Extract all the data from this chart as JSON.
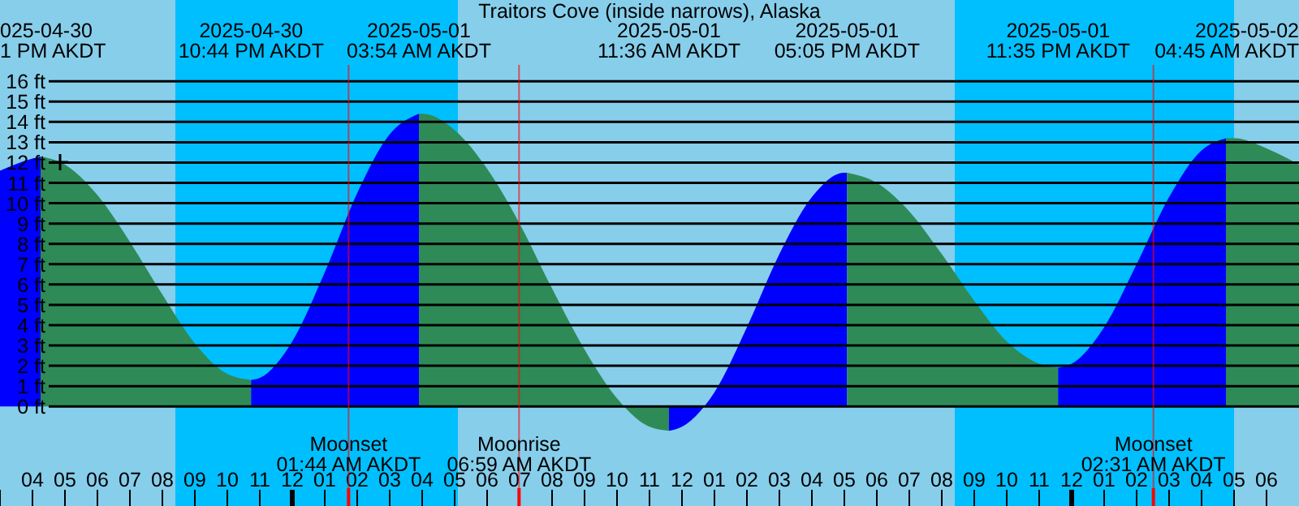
{
  "chart_data": {
    "type": "area",
    "title": "Traitors Cove (inside narrows), Alaska",
    "series": [
      {
        "color": "#0000ff",
        "x": [
          "2025-04-30T15:00",
          "2025-04-30T16:00",
          "2025-04-30T16:15"
        ],
        "values": [
          11.6,
          12.2,
          12.3
        ]
      },
      {
        "color": "#2e8b57",
        "x": [
          "2025-04-30T16:15",
          "2025-04-30T17:00",
          "2025-04-30T18:00",
          "2025-04-30T19:00",
          "2025-04-30T20:00",
          "2025-04-30T21:00",
          "2025-04-30T22:00",
          "2025-04-30T22:44"
        ],
        "values": [
          12.3,
          11.9,
          10.4,
          8.1,
          5.5,
          3.1,
          1.6,
          1.3
        ]
      },
      {
        "color": "#0000ff",
        "x": [
          "2025-04-30T22:44",
          "2025-04-30T23:00",
          "2025-05-01T00:00",
          "2025-05-01T01:00",
          "2025-05-01T02:00",
          "2025-05-01T03:00",
          "2025-05-01T03:54"
        ],
        "values": [
          1.3,
          1.4,
          3.2,
          6.6,
          10.5,
          13.4,
          14.4
        ]
      },
      {
        "color": "#2e8b57",
        "x": [
          "2025-05-01T03:54",
          "2025-05-01T04:00",
          "2025-05-01T05:00",
          "2025-05-01T06:00",
          "2025-05-01T07:00",
          "2025-05-01T08:00",
          "2025-05-01T09:00",
          "2025-05-01T10:00",
          "2025-05-01T11:00",
          "2025-05-01T11:36"
        ],
        "values": [
          14.4,
          14.4,
          13.6,
          11.7,
          9.0,
          5.8,
          2.8,
          0.4,
          -1.0,
          -1.2
        ]
      },
      {
        "color": "#0000ff",
        "x": [
          "2025-05-01T11:36",
          "2025-05-01T12:00",
          "2025-05-01T13:00",
          "2025-05-01T14:00",
          "2025-05-01T15:00",
          "2025-05-01T16:00",
          "2025-05-01T17:00",
          "2025-05-01T17:05"
        ],
        "values": [
          -1.2,
          -1.0,
          0.7,
          3.9,
          7.5,
          10.3,
          11.5,
          11.5
        ]
      },
      {
        "color": "#2e8b57",
        "x": [
          "2025-05-01T17:05",
          "2025-05-01T18:00",
          "2025-05-01T19:00",
          "2025-05-01T20:00",
          "2025-05-01T21:00",
          "2025-05-01T22:00",
          "2025-05-01T23:00",
          "2025-05-01T23:35"
        ],
        "values": [
          11.5,
          11.0,
          9.6,
          7.5,
          5.2,
          3.2,
          2.1,
          1.9
        ]
      },
      {
        "color": "#0000ff",
        "x": [
          "2025-05-01T23:35",
          "2025-05-02T00:00",
          "2025-05-02T01:00",
          "2025-05-02T02:00",
          "2025-05-02T03:00",
          "2025-05-02T04:00",
          "2025-05-02T04:45"
        ],
        "values": [
          1.9,
          2.1,
          3.9,
          7.0,
          10.3,
          12.6,
          13.2
        ]
      },
      {
        "color": "#2e8b57",
        "x": [
          "2025-05-02T04:45",
          "2025-05-02T05:00",
          "2025-05-02T06:00",
          "2025-05-02T07:00"
        ],
        "values": [
          13.2,
          13.2,
          12.7,
          11.9
        ]
      }
    ],
    "xlim": [
      "2025-04-30T15:00",
      "2025-05-02T07:00"
    ],
    "xticks": [
      {
        "value": "2025-04-30T15:00",
        "label": null
      },
      {
        "value": "2025-04-30T16:00",
        "label": "04"
      },
      {
        "value": "2025-04-30T17:00",
        "label": "05"
      },
      {
        "value": "2025-04-30T18:00",
        "label": "06"
      },
      {
        "value": "2025-04-30T19:00",
        "label": "07"
      },
      {
        "value": "2025-04-30T20:00",
        "label": "08"
      },
      {
        "value": "2025-04-30T21:00",
        "label": "09"
      },
      {
        "value": "2025-04-30T22:00",
        "label": "10"
      },
      {
        "value": "2025-04-30T23:00",
        "label": "11"
      },
      {
        "value": "2025-05-01T00:00",
        "label": "12"
      },
      {
        "value": "2025-05-01T01:00",
        "label": "01"
      },
      {
        "value": "2025-05-01T02:00",
        "label": "02"
      },
      {
        "value": "2025-05-01T03:00",
        "label": "03"
      },
      {
        "value": "2025-05-01T04:00",
        "label": "04"
      },
      {
        "value": "2025-05-01T05:00",
        "label": "05"
      },
      {
        "value": "2025-05-01T06:00",
        "label": "06"
      },
      {
        "value": "2025-05-01T07:00",
        "label": "07"
      },
      {
        "value": "2025-05-01T08:00",
        "label": "08"
      },
      {
        "value": "2025-05-01T09:00",
        "label": "09"
      },
      {
        "value": "2025-05-01T10:00",
        "label": "10"
      },
      {
        "value": "2025-05-01T11:00",
        "label": "11"
      },
      {
        "value": "2025-05-01T12:00",
        "label": "12"
      },
      {
        "value": "2025-05-01T13:00",
        "label": "01"
      },
      {
        "value": "2025-05-01T14:00",
        "label": "02"
      },
      {
        "value": "2025-05-01T15:00",
        "label": "03"
      },
      {
        "value": "2025-05-01T16:00",
        "label": "04"
      },
      {
        "value": "2025-05-01T17:00",
        "label": "05"
      },
      {
        "value": "2025-05-01T18:00",
        "label": "06"
      },
      {
        "value": "2025-05-01T19:00",
        "label": "07"
      },
      {
        "value": "2025-05-01T20:00",
        "label": "08"
      },
      {
        "value": "2025-05-01T21:00",
        "label": "09"
      },
      {
        "value": "2025-05-01T22:00",
        "label": "10"
      },
      {
        "value": "2025-05-01T23:00",
        "label": "11"
      },
      {
        "value": "2025-05-02T00:00",
        "label": "12"
      },
      {
        "value": "2025-05-02T01:00",
        "label": "01"
      },
      {
        "value": "2025-05-02T02:00",
        "label": "02"
      },
      {
        "value": "2025-05-02T03:00",
        "label": "03"
      },
      {
        "value": "2025-05-02T04:00",
        "label": "04"
      },
      {
        "value": "2025-05-02T05:00",
        "label": "05"
      },
      {
        "value": "2025-05-02T06:00",
        "label": "06"
      }
    ],
    "ylim": [
      -4.9,
      20
    ],
    "yticks": [
      {
        "value": 0,
        "label": "0 ft"
      },
      {
        "value": 1,
        "label": "1 ft"
      },
      {
        "value": 2,
        "label": "2 ft"
      },
      {
        "value": 3,
        "label": "3 ft"
      },
      {
        "value": 4,
        "label": "4 ft"
      },
      {
        "value": 5,
        "label": "5 ft"
      },
      {
        "value": 6,
        "label": "6 ft"
      },
      {
        "value": 7,
        "label": "7 ft"
      },
      {
        "value": 8,
        "label": "8 ft"
      },
      {
        "value": 9,
        "label": "9 ft"
      },
      {
        "value": 10,
        "label": "10 ft"
      },
      {
        "value": 11,
        "label": "11 ft"
      },
      {
        "value": 12,
        "label": "12 ft"
      },
      {
        "value": 13,
        "label": "13 ft"
      },
      {
        "value": 14,
        "label": "14 ft"
      },
      {
        "value": 15,
        "label": "15 ft"
      },
      {
        "value": 16,
        "label": "16 ft"
      }
    ],
    "grid": "y",
    "bands": [
      {
        "axis": "x",
        "from": "2025-04-30T20:24",
        "to": "2025-05-01T05:06",
        "color": "#00bfff"
      },
      {
        "axis": "x",
        "from": "2025-05-01T20:24",
        "to": "2025-05-02T05:00",
        "color": "#00bfff"
      }
    ],
    "ref_lines": [
      {
        "axis": "x",
        "value": "2025-05-01T01:44",
        "label": "Moonset\n01:44 AM AKDT",
        "color": "#ff0000"
      },
      {
        "axis": "x",
        "value": "2025-05-01T06:59",
        "label": "Moonrise\n06:59 AM AKDT",
        "color": "#ff0000"
      },
      {
        "axis": "x",
        "value": "2025-05-02T02:31",
        "label": "Moonset\n02:31 AM AKDT",
        "color": "#ff0000"
      }
    ],
    "annotations": [
      "025-04-30\n1 PM AKDT",
      "2025-04-30\n10:44 PM AKDT",
      "2025-05-01\n03:54 AM AKDT",
      "2025-05-01\n11:36 AM AKDT",
      "2025-05-01\n05:05 PM AKDT",
      "2025-05-01\n11:35 PM AKDT",
      "2025-05-02\n04:45 AM AKDT"
    ]
  }
}
